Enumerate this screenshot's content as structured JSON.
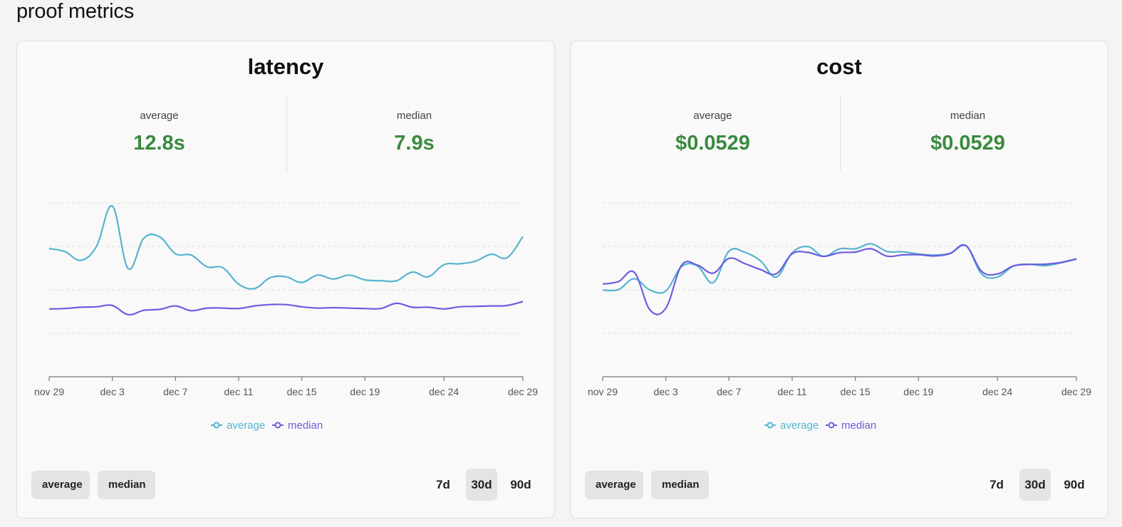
{
  "page": {
    "title": "proof metrics"
  },
  "colors": {
    "average": "#56b4cf",
    "median": "#6a5ee0",
    "value": "#3a8a3e",
    "grid": "#dddddd",
    "axis": "#777777"
  },
  "cards": [
    {
      "title": "latency",
      "stats": [
        {
          "label": "average",
          "value": "12.8s"
        },
        {
          "label": "median",
          "value": "7.9s"
        }
      ],
      "toggles": [
        "average",
        "median"
      ],
      "ranges": [
        {
          "label": "7d",
          "active": false
        },
        {
          "label": "30d",
          "active": true
        },
        {
          "label": "90d",
          "active": false
        }
      ]
    },
    {
      "title": "cost",
      "stats": [
        {
          "label": "average",
          "value": "$0.0529"
        },
        {
          "label": "median",
          "value": "$0.0529"
        }
      ],
      "toggles": [
        "average",
        "median"
      ],
      "ranges": [
        {
          "label": "7d",
          "active": false
        },
        {
          "label": "30d",
          "active": true
        },
        {
          "label": "90d",
          "active": false
        }
      ]
    }
  ],
  "chart_data": [
    {
      "type": "line",
      "title": "latency",
      "x_ticks": [
        "nov 29",
        "dec 3",
        "dec 7",
        "dec 11",
        "dec 15",
        "dec 19",
        "dec 24",
        "dec 29"
      ],
      "x_tick_positions": [
        0,
        4,
        8,
        12,
        16,
        20,
        25,
        30
      ],
      "ylim": [
        0,
        40
      ],
      "gridlines": [
        10,
        20,
        30,
        40
      ],
      "legend": "bottom-center",
      "series": [
        {
          "name": "average",
          "x": [
            0,
            1,
            2,
            3,
            4,
            5,
            6,
            7,
            8,
            9,
            10,
            11,
            12,
            13,
            14,
            15,
            16,
            17,
            18,
            19,
            20,
            21,
            22,
            23,
            24,
            25,
            26,
            27,
            28,
            29,
            30
          ],
          "values": [
            29.5,
            28.8,
            26.8,
            30,
            39.3,
            24.9,
            31.9,
            32.2,
            28.3,
            28.0,
            25.3,
            25.1,
            21.3,
            20.3,
            22.8,
            23.0,
            21.7,
            23.4,
            22.5,
            23.4,
            22.3,
            22.1,
            22.1,
            24.1,
            23.0,
            25.8,
            26.0,
            26.6,
            28.2,
            27.4,
            32.3
          ]
        },
        {
          "name": "median",
          "x": [
            0,
            1,
            2,
            3,
            4,
            5,
            6,
            7,
            8,
            9,
            10,
            11,
            12,
            13,
            14,
            15,
            16,
            17,
            18,
            19,
            20,
            21,
            22,
            23,
            24,
            25,
            26,
            27,
            28,
            29,
            30
          ],
          "values": [
            15.6,
            15.7,
            16.0,
            16.1,
            16.4,
            14.3,
            15.3,
            15.5,
            16.3,
            15.2,
            15.8,
            15.8,
            15.7,
            16.3,
            16.6,
            16.6,
            16.1,
            15.8,
            15.9,
            15.8,
            15.7,
            15.7,
            16.9,
            16.0,
            16.0,
            15.6,
            16.1,
            16.2,
            16.3,
            16.4,
            17.3
          ]
        }
      ]
    },
    {
      "type": "line",
      "title": "cost",
      "x_ticks": [
        "nov 29",
        "dec 3",
        "dec 7",
        "dec 11",
        "dec 15",
        "dec 19",
        "dec 24",
        "dec 29"
      ],
      "x_tick_positions": [
        0,
        4,
        8,
        12,
        16,
        20,
        25,
        30
      ],
      "ylim": [
        0,
        0.08
      ],
      "gridlines": [
        0.02,
        0.04,
        0.06,
        0.08
      ],
      "legend": "bottom-center",
      "series": [
        {
          "name": "average",
          "x": [
            0,
            1,
            2,
            3,
            4,
            5,
            6,
            7,
            8,
            9,
            10,
            11,
            12,
            13,
            14,
            15,
            16,
            17,
            18,
            19,
            20,
            21,
            22,
            23,
            24,
            25,
            26,
            27,
            28,
            29,
            30
          ],
          "values": [
            0.0399,
            0.0401,
            0.0451,
            0.0399,
            0.0395,
            0.0507,
            0.051,
            0.0433,
            0.0578,
            0.0573,
            0.0533,
            0.0459,
            0.0571,
            0.0599,
            0.0554,
            0.0589,
            0.0589,
            0.0612,
            0.0577,
            0.0575,
            0.0565,
            0.056,
            0.0569,
            0.0604,
            0.0473,
            0.0459,
            0.0509,
            0.0518,
            0.0511,
            0.0524,
            0.0541
          ]
        },
        {
          "name": "median",
          "x": [
            0,
            1,
            2,
            3,
            4,
            5,
            6,
            7,
            8,
            9,
            10,
            11,
            12,
            13,
            14,
            15,
            16,
            17,
            18,
            19,
            20,
            21,
            22,
            23,
            24,
            25,
            26,
            27,
            28,
            29,
            30
          ],
          "values": [
            0.0427,
            0.0438,
            0.0481,
            0.0307,
            0.0316,
            0.0513,
            0.0514,
            0.0477,
            0.0545,
            0.0521,
            0.0493,
            0.0474,
            0.0566,
            0.0572,
            0.0554,
            0.0571,
            0.0574,
            0.0589,
            0.0555,
            0.0561,
            0.0562,
            0.0556,
            0.0567,
            0.0603,
            0.0485,
            0.0473,
            0.051,
            0.0517,
            0.0518,
            0.0526,
            0.0543
          ]
        }
      ]
    }
  ]
}
